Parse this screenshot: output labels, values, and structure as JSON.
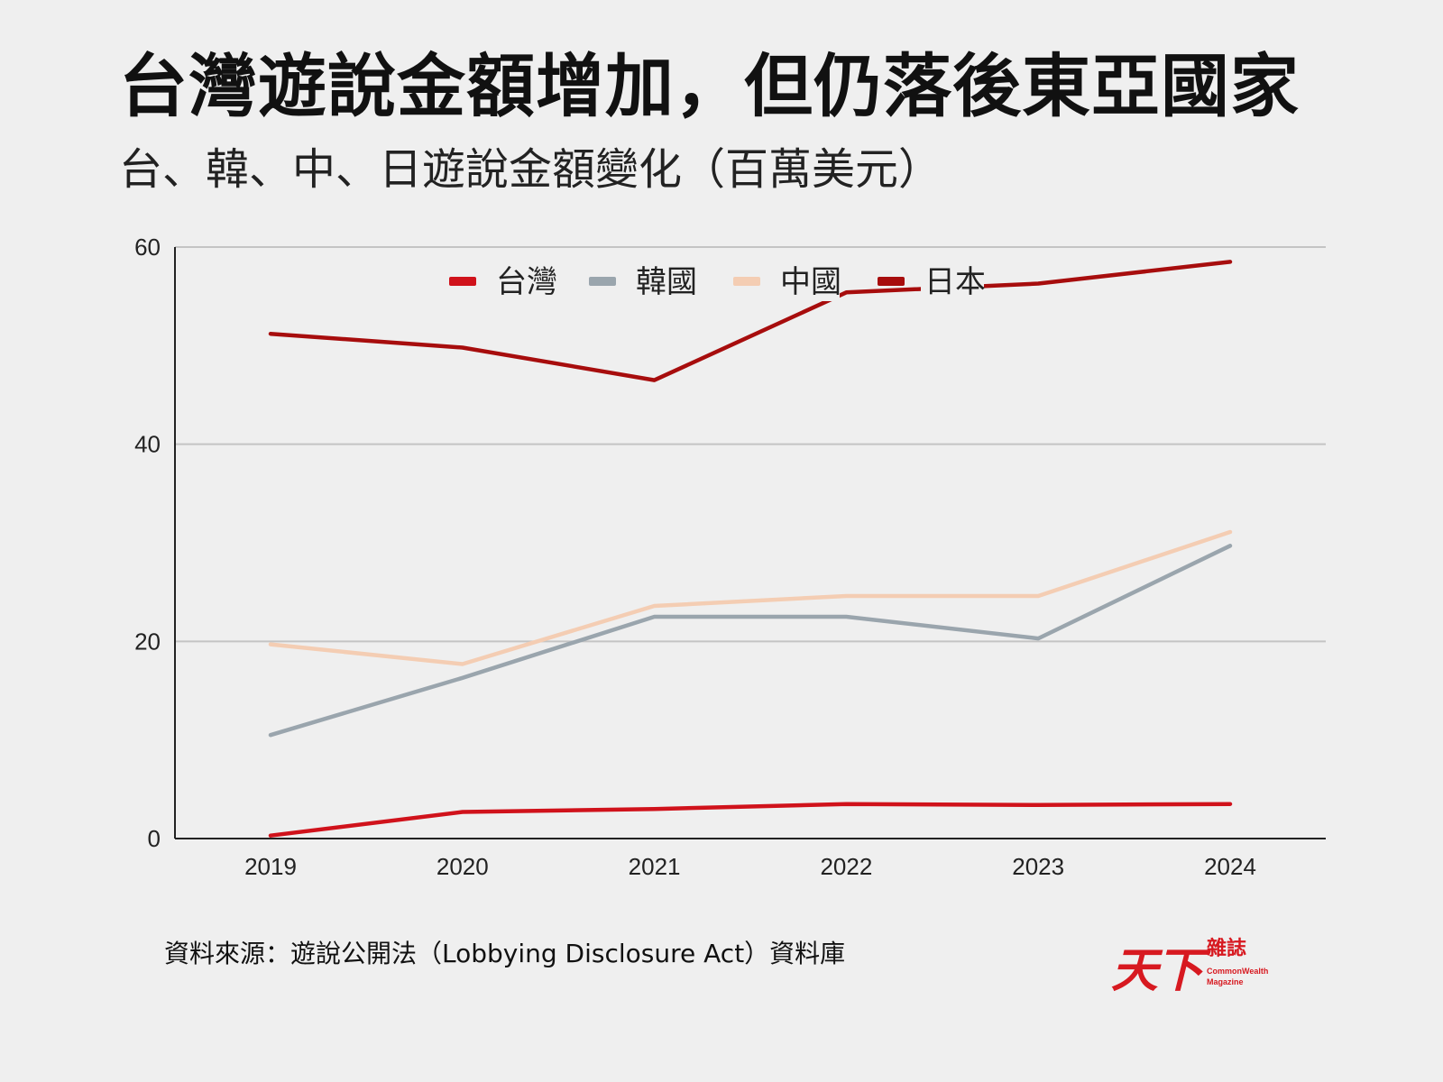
{
  "title": "台灣遊說金額增加，但仍落後東亞國家",
  "subtitle": "台、韓、中、日遊說金額變化（百萬美元）",
  "source": "資料來源：遊說公開法（Lobbying Disclosure Act）資料庫",
  "logo": {
    "mark": "天下",
    "name_zh": "雜誌",
    "name_en_1": "CommonWealth",
    "name_en_2": "Magazine"
  },
  "chart_data": {
    "type": "line",
    "title": "台灣遊說金額增加，但仍落後東亞國家",
    "subtitle": "台、韓、中、日遊說金額變化（百萬美元）",
    "xlabel": "",
    "ylabel": "",
    "categories": [
      "2019",
      "2020",
      "2021",
      "2022",
      "2023",
      "2024"
    ],
    "ylim": [
      0,
      60
    ],
    "yticks": [
      0,
      20,
      40,
      60
    ],
    "grid": true,
    "legend": "top-center",
    "series": [
      {
        "name": "台灣",
        "color": "#d0121b",
        "values": [
          0.3,
          2.7,
          3.0,
          3.5,
          3.4,
          3.5
        ]
      },
      {
        "name": "韓國",
        "color": "#9aa5ad",
        "values": [
          10.5,
          16.3,
          22.5,
          22.5,
          20.3,
          29.7
        ]
      },
      {
        "name": "中國",
        "color": "#f4cdb3",
        "values": [
          19.7,
          17.7,
          23.6,
          24.6,
          24.6,
          31.1
        ]
      },
      {
        "name": "日本",
        "color": "#a70d0d",
        "values": [
          51.2,
          49.8,
          46.5,
          55.4,
          56.3,
          58.5
        ]
      }
    ]
  }
}
